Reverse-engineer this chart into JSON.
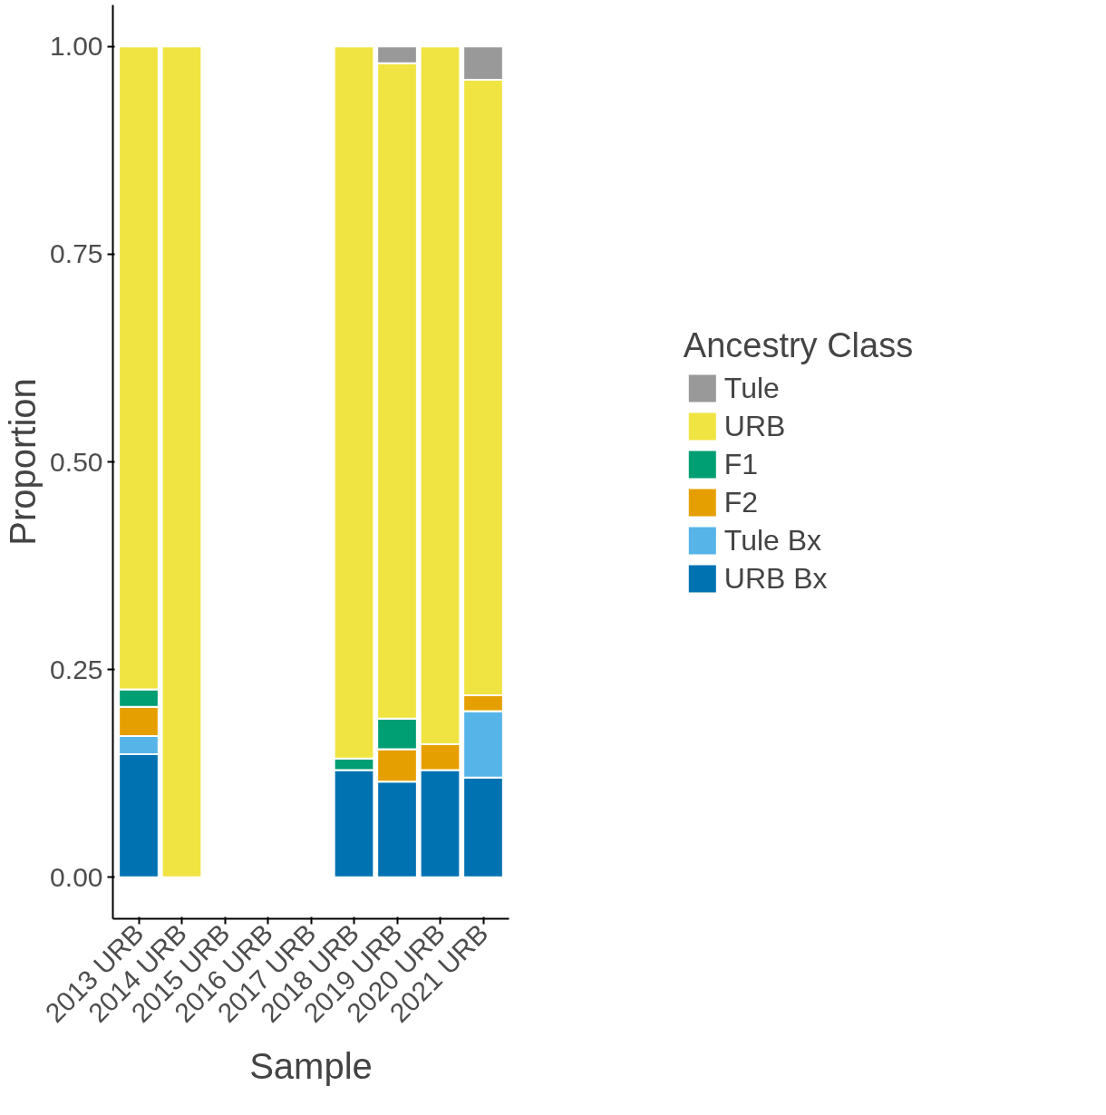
{
  "chart_data": {
    "type": "bar",
    "stacked": true,
    "xlabel": "Sample",
    "ylabel": "Proportion",
    "legend_title": "Ancestry Class",
    "legend": "right",
    "grid": false,
    "categories": [
      "2013 URB",
      "2014 URB",
      "2015 URB",
      "2016 URB",
      "2017 URB",
      "2018 URB",
      "2019 URB",
      "2020 URB",
      "2021 URB"
    ],
    "ylim": [
      -0.05,
      1.05
    ],
    "yticks": [
      {
        "value": 0,
        "label": "0.00"
      },
      {
        "value": 0.25,
        "label": "0.25"
      },
      {
        "value": 0.5,
        "label": "0.50"
      },
      {
        "value": 0.75,
        "label": "0.75"
      },
      {
        "value": 1,
        "label": "1.00"
      }
    ],
    "series": [
      {
        "name": "URB Bx",
        "color": "#0072b2",
        "values": [
          0.148,
          0,
          null,
          null,
          null,
          0.129,
          0.115,
          0.129,
          0.12
        ]
      },
      {
        "name": "Tule Bx",
        "color": "#56b4e9",
        "values": [
          0.022,
          0,
          null,
          null,
          null,
          0,
          0,
          0,
          0.08
        ]
      },
      {
        "name": "F2",
        "color": "#e69f00",
        "values": [
          0.035,
          0,
          null,
          null,
          null,
          0,
          0.039,
          0.031,
          0.019
        ]
      },
      {
        "name": "F1",
        "color": "#009e73",
        "values": [
          0.021,
          0,
          null,
          null,
          null,
          0.014,
          0.037,
          0,
          0
        ]
      },
      {
        "name": "URB",
        "color": "#f0e442",
        "values": [
          0.774,
          1,
          null,
          null,
          null,
          0.857,
          0.789,
          0.84,
          0.741
        ]
      },
      {
        "name": "Tule",
        "color": "#999999",
        "values": [
          0,
          0,
          null,
          null,
          null,
          0,
          0.02,
          0,
          0.04
        ]
      }
    ]
  }
}
